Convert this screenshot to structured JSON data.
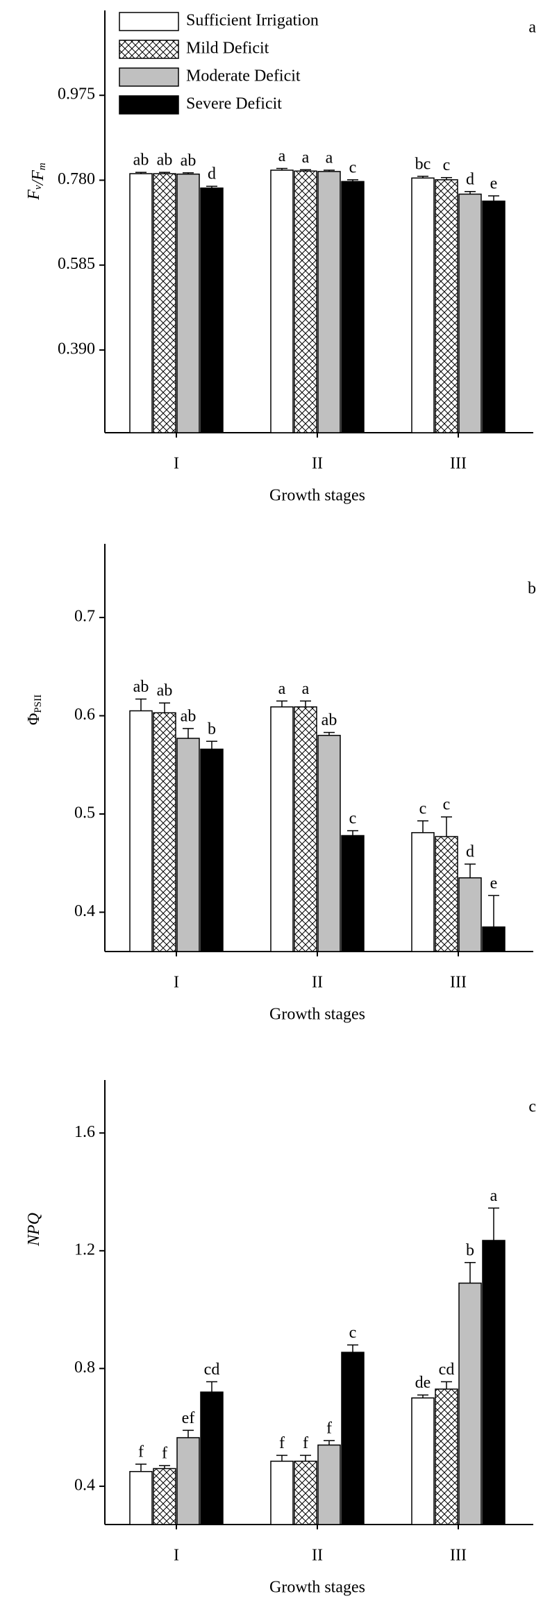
{
  "chart_data": [
    {
      "type": "bar",
      "panel_label": "a",
      "ylabel": "Fv/Fm",
      "xlabel": "Growth stages",
      "categories": [
        "I",
        "II",
        "III"
      ],
      "ylim": [
        0.2,
        1.17
      ],
      "yticks": [
        {
          "value": 0.39,
          "label": "0.390"
        },
        0.585,
        {
          "value": 0.78,
          "label": "0.780"
        },
        0.975
      ],
      "legend": "upper left",
      "series": [
        {
          "name": "Sufficient Irrigation",
          "color": "#ffffff",
          "values": [
            0.795,
            0.803,
            0.785
          ],
          "errors": [
            0.003,
            0.004,
            0.004
          ],
          "letters": [
            "ab",
            "a",
            "bc"
          ]
        },
        {
          "name": "Mild Deficit",
          "color": "#ffffff",
          "pattern": "crosshatch",
          "values": [
            0.795,
            0.801,
            0.781
          ],
          "errors": [
            0.003,
            0.003,
            0.005
          ],
          "letters": [
            "ab",
            "a",
            "c"
          ]
        },
        {
          "name": "Moderate Deficit",
          "color": "#c0c0c0",
          "values": [
            0.794,
            0.8,
            0.748
          ],
          "errors": [
            0.003,
            0.003,
            0.006
          ],
          "letters": [
            "ab",
            "a",
            "d"
          ]
        },
        {
          "name": "Severe Deficit",
          "color": "#000000",
          "values": [
            0.762,
            0.777,
            0.732
          ],
          "errors": [
            0.004,
            0.004,
            0.012
          ],
          "letters": [
            "d",
            "c",
            "e"
          ]
        }
      ]
    },
    {
      "type": "bar",
      "panel_label": "b",
      "ylabel": "ΦPSII",
      "xlabel": "Growth stages",
      "categories": [
        "I",
        "II",
        "III"
      ],
      "ylim": [
        0.36,
        0.775
      ],
      "yticks": [
        0.4,
        0.5,
        0.6,
        0.7
      ],
      "series": [
        {
          "color": "#ffffff",
          "values": [
            0.605,
            0.609,
            0.481
          ],
          "errors": [
            0.012,
            0.006,
            0.012
          ],
          "letters": [
            "ab",
            "a",
            "c"
          ]
        },
        {
          "color": "#ffffff",
          "pattern": "crosshatch",
          "values": [
            0.603,
            0.609,
            0.477
          ],
          "errors": [
            0.01,
            0.006,
            0.02
          ],
          "letters": [
            "ab",
            "a",
            "c"
          ]
        },
        {
          "color": "#c0c0c0",
          "values": [
            0.577,
            0.58,
            0.435
          ],
          "errors": [
            0.01,
            0.003,
            0.014
          ],
          "letters": [
            "ab",
            "ab",
            "d"
          ]
        },
        {
          "color": "#000000",
          "values": [
            0.566,
            0.478,
            0.385
          ],
          "errors": [
            0.008,
            0.005,
            0.032
          ],
          "letters": [
            "b",
            "c",
            "e"
          ]
        }
      ]
    },
    {
      "type": "bar",
      "panel_label": "c",
      "ylabel": "NPQ",
      "xlabel": "Growth stages",
      "categories": [
        "I",
        "II",
        "III"
      ],
      "ylim": [
        0.27,
        1.78
      ],
      "yticks": [
        0.4,
        0.8,
        1.2,
        1.6
      ],
      "series": [
        {
          "color": "#ffffff",
          "values": [
            0.45,
            0.485,
            0.7
          ],
          "errors": [
            0.025,
            0.02,
            0.01
          ],
          "letters": [
            "f",
            "f",
            "de"
          ]
        },
        {
          "color": "#ffffff",
          "pattern": "crosshatch",
          "values": [
            0.46,
            0.485,
            0.73
          ],
          "errors": [
            0.01,
            0.02,
            0.025
          ],
          "letters": [
            "f",
            "f",
            "cd"
          ]
        },
        {
          "color": "#c0c0c0",
          "values": [
            0.565,
            0.54,
            1.09
          ],
          "errors": [
            0.025,
            0.015,
            0.07
          ],
          "letters": [
            "ef",
            "f",
            "b"
          ]
        },
        {
          "color": "#000000",
          "values": [
            0.72,
            0.855,
            1.235
          ],
          "errors": [
            0.035,
            0.025,
            0.11
          ],
          "letters": [
            "cd",
            "c",
            "a"
          ]
        }
      ]
    }
  ]
}
